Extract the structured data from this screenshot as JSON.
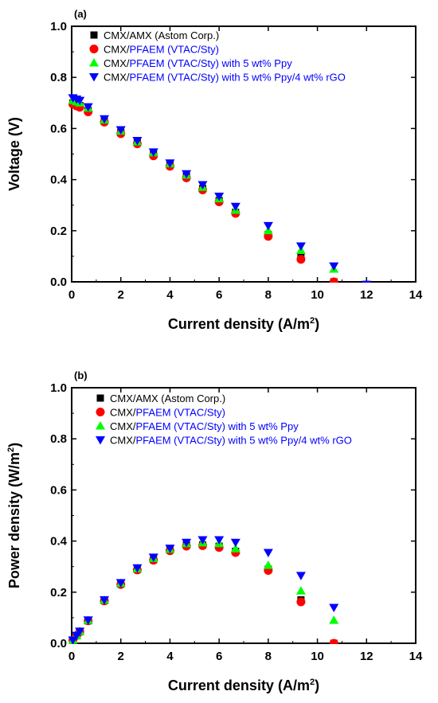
{
  "chart_data": [
    {
      "type": "scatter",
      "panel_label": "(a)",
      "xlabel": "Current density (A/m",
      "xlabel_sup": "2",
      "xlabel_end": ")",
      "ylabel": "Voltage (V)",
      "ylabel_sup": "",
      "ylabel_end": "",
      "xlim": [
        0,
        14
      ],
      "ylim": [
        0,
        1.0
      ],
      "xticks": [
        "0",
        "2",
        "4",
        "6",
        "8",
        "10",
        "12",
        "14"
      ],
      "yticks": [
        "0.0",
        "0.2",
        "0.4",
        "0.6",
        "0.8",
        "1.0"
      ],
      "legend_position": "top-left",
      "series": [
        {
          "name": "CMX/AMX (Astom Corp.)",
          "name_parts": [
            "CMX/AMX (Astom Corp.)"
          ],
          "marker": "square",
          "color": "#000000",
          "x": [
            0.05,
            0.2,
            0.33,
            0.67,
            1.33,
            2.0,
            2.67,
            3.33,
            4.0,
            4.67,
            5.33,
            6.0,
            6.67,
            8.0,
            9.33,
            10.67,
            12.0
          ],
          "y": [
            0.7,
            0.695,
            0.69,
            0.67,
            0.628,
            0.585,
            0.545,
            0.5,
            0.458,
            0.413,
            0.365,
            0.318,
            0.272,
            0.185,
            0.095,
            0.0,
            -0.01
          ]
        },
        {
          "name": "CMX/PFAEM (VTAC/Sty)",
          "name_parts": [
            "CMX/",
            "PFAEM (VTAC/Sty)"
          ],
          "marker": "circle",
          "color": "#ff0000",
          "x": [
            0.05,
            0.2,
            0.33,
            0.67,
            1.33,
            2.0,
            2.67,
            3.33,
            4.0,
            4.67,
            5.33,
            6.0,
            6.67,
            8.0,
            9.33,
            10.67
          ],
          "y": [
            0.695,
            0.688,
            0.683,
            0.665,
            0.625,
            0.58,
            0.54,
            0.493,
            0.452,
            0.407,
            0.36,
            0.313,
            0.268,
            0.178,
            0.088,
            0.0
          ]
        },
        {
          "name": "CMX/PFAEM (VTAC/Sty) with 5 wt% Ppy",
          "name_parts": [
            "CMX/",
            "PFAEM (VTAC/Sty) with 5 wt% Ppy"
          ],
          "marker": "triangle-up",
          "color": "#00ff00",
          "x": [
            0.05,
            0.2,
            0.33,
            0.67,
            1.33,
            2.0,
            2.67,
            3.33,
            4.0,
            4.67,
            5.33,
            6.0,
            6.67,
            8.0,
            9.33,
            10.67
          ],
          "y": [
            0.71,
            0.705,
            0.7,
            0.68,
            0.633,
            0.59,
            0.548,
            0.505,
            0.462,
            0.418,
            0.37,
            0.325,
            0.28,
            0.2,
            0.123,
            0.05
          ]
        },
        {
          "name": "CMX/PFAEM (VTAC/Sty) with 5 wt% Ppy/4 wt% rGO",
          "name_parts": [
            "CMX/",
            "PFAEM (VTAC/Sty) with 5 wt% Ppy/4 wt% rGO"
          ],
          "marker": "triangle-down",
          "color": "#0000ff",
          "x": [
            0.05,
            0.2,
            0.33,
            0.67,
            1.33,
            2.0,
            2.67,
            3.33,
            4.0,
            4.67,
            5.33,
            6.0,
            6.67,
            8.0,
            9.33,
            10.67,
            12.0
          ],
          "y": [
            0.72,
            0.715,
            0.71,
            0.685,
            0.638,
            0.595,
            0.553,
            0.508,
            0.465,
            0.423,
            0.38,
            0.335,
            0.295,
            0.22,
            0.14,
            0.062,
            -0.01
          ]
        }
      ]
    },
    {
      "type": "scatter",
      "panel_label": "(b)",
      "xlabel": "Current density (A/m",
      "xlabel_sup": "2",
      "xlabel_end": ")",
      "ylabel": "Power density (W/m",
      "ylabel_sup": "2",
      "ylabel_end": ")",
      "xlim": [
        0,
        14
      ],
      "ylim": [
        0,
        1.0
      ],
      "xticks": [
        "0",
        "2",
        "4",
        "6",
        "8",
        "10",
        "12",
        "14"
      ],
      "yticks": [
        "0.0",
        "0.2",
        "0.4",
        "0.6",
        "0.8",
        "1.0"
      ],
      "legend_position": "top-left",
      "series": [
        {
          "name": "CMX/AMX (Astom Corp.)",
          "name_parts": [
            "CMX/AMX (Astom Corp.)"
          ],
          "marker": "square",
          "color": "#000000",
          "x": [
            0.05,
            0.2,
            0.33,
            0.67,
            1.33,
            2.0,
            2.67,
            3.33,
            4.0,
            4.67,
            5.33,
            6.0,
            6.67,
            8.0,
            9.33,
            10.67
          ],
          "y": [
            0.012,
            0.03,
            0.045,
            0.088,
            0.167,
            0.232,
            0.289,
            0.327,
            0.365,
            0.385,
            0.385,
            0.38,
            0.36,
            0.29,
            0.17,
            0.0
          ]
        },
        {
          "name": "CMX/PFAEM (VTAC/Sty)",
          "name_parts": [
            "CMX/",
            "PFAEM (VTAC/Sty)"
          ],
          "marker": "circle",
          "color": "#ff0000",
          "x": [
            0.05,
            0.2,
            0.33,
            0.67,
            1.33,
            2.0,
            2.67,
            3.33,
            4.0,
            4.67,
            5.33,
            6.0,
            6.67,
            8.0,
            9.33,
            10.67
          ],
          "y": [
            0.012,
            0.03,
            0.045,
            0.088,
            0.166,
            0.23,
            0.287,
            0.325,
            0.362,
            0.38,
            0.382,
            0.375,
            0.355,
            0.285,
            0.162,
            0.0
          ]
        },
        {
          "name": "CMX/PFAEM (VTAC/Sty) with 5 wt% Ppy",
          "name_parts": [
            "CMX/",
            "PFAEM (VTAC/Sty) with 5 wt% Ppy"
          ],
          "marker": "triangle-up",
          "color": "#00ff00",
          "x": [
            0.05,
            0.2,
            0.33,
            0.67,
            1.33,
            2.0,
            2.67,
            3.33,
            4.0,
            4.67,
            5.33,
            6.0,
            6.67,
            8.0,
            9.33,
            10.67
          ],
          "y": [
            0.012,
            0.03,
            0.046,
            0.09,
            0.169,
            0.235,
            0.292,
            0.332,
            0.368,
            0.39,
            0.393,
            0.39,
            0.37,
            0.305,
            0.205,
            0.09
          ]
        },
        {
          "name": "CMX/PFAEM (VTAC/Sty) with 5 wt% Ppy/4 wt% rGO",
          "name_parts": [
            "CMX/",
            "PFAEM (VTAC/Sty) with 5 wt% Ppy/4 wt% rGO"
          ],
          "marker": "triangle-down",
          "color": "#0000ff",
          "x": [
            0.05,
            0.2,
            0.33,
            0.67,
            1.33,
            2.0,
            2.67,
            3.33,
            4.0,
            4.67,
            5.33,
            6.0,
            6.67,
            8.0,
            9.33,
            10.67
          ],
          "y": [
            0.013,
            0.031,
            0.047,
            0.091,
            0.17,
            0.237,
            0.295,
            0.337,
            0.372,
            0.395,
            0.405,
            0.405,
            0.395,
            0.355,
            0.265,
            0.14
          ]
        }
      ]
    }
  ]
}
